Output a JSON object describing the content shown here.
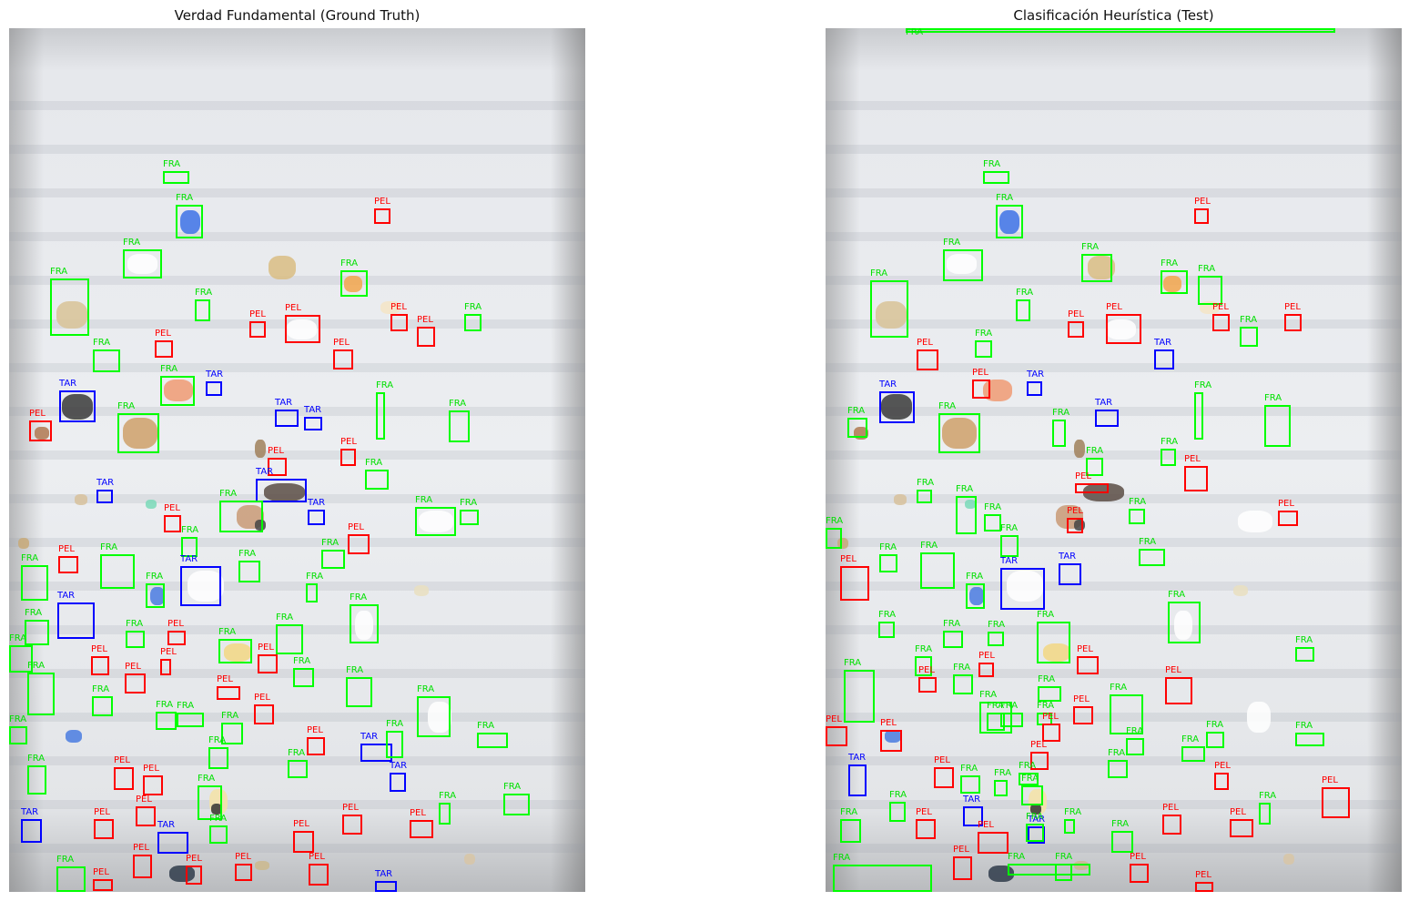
{
  "titles": {
    "left": "Verdad Fundamental (Ground Truth)",
    "right": "Clasificación Heurística (Test)"
  },
  "classes": {
    "fragment": "FRA",
    "pellet": "PEL",
    "tar": "TAR"
  },
  "colors": {
    "FRA": "#00ff00",
    "PEL": "#ff0000",
    "TAR": "#0000ff"
  },
  "panels": [
    {
      "name": "ground-truth",
      "detections": [
        {
          "c": "FRA"
        },
        {
          "c": "FRA"
        },
        {
          "c": "PEL"
        },
        {
          "c": "FRA"
        },
        {
          "c": "FRA"
        },
        {
          "c": "FRA"
        },
        {
          "c": "FRA"
        },
        {
          "c": "PEL"
        },
        {
          "c": "PEL"
        },
        {
          "c": "PEL"
        },
        {
          "c": "FRA"
        },
        {
          "c": "PEL"
        },
        {
          "c": "PEL"
        },
        {
          "c": "FRA"
        },
        {
          "c": "PEL"
        },
        {
          "c": "TAR"
        },
        {
          "c": "FRA"
        },
        {
          "c": "TAR"
        },
        {
          "c": "TAR"
        },
        {
          "c": "FRA"
        },
        {
          "c": "FRA"
        },
        {
          "c": "FRA"
        },
        {
          "c": "TAR"
        },
        {
          "c": "PEL"
        },
        {
          "c": "PEL"
        },
        {
          "c": "PEL"
        },
        {
          "c": "FRA"
        },
        {
          "c": "TAR"
        },
        {
          "c": "TAR"
        },
        {
          "c": "FRA"
        },
        {
          "c": "TAR"
        },
        {
          "c": "PEL"
        },
        {
          "c": "FRA"
        },
        {
          "c": "FRA"
        },
        {
          "c": "PEL"
        },
        {
          "c": "FRA"
        },
        {
          "c": "FRA"
        },
        {
          "c": "PEL"
        },
        {
          "c": "FRA"
        },
        {
          "c": "FRA"
        },
        {
          "c": "TAR"
        },
        {
          "c": "FRA"
        },
        {
          "c": "FRA"
        },
        {
          "c": "FRA"
        },
        {
          "c": "TAR"
        },
        {
          "c": "FRA"
        },
        {
          "c": "FRA"
        },
        {
          "c": "FRA"
        },
        {
          "c": "PEL"
        },
        {
          "c": "FRA"
        },
        {
          "c": "FRA"
        },
        {
          "c": "FRA"
        },
        {
          "c": "PEL"
        },
        {
          "c": "PEL"
        },
        {
          "c": "PEL"
        },
        {
          "c": "FRA"
        },
        {
          "c": "PEL"
        },
        {
          "c": "FRA"
        },
        {
          "c": "FRA"
        },
        {
          "c": "PEL"
        },
        {
          "c": "FRA"
        },
        {
          "c": "FRA"
        },
        {
          "c": "FRA"
        },
        {
          "c": "FRA"
        },
        {
          "c": "PEL"
        },
        {
          "c": "FRA"
        },
        {
          "c": "PEL"
        },
        {
          "c": "FRA"
        },
        {
          "c": "FRA"
        },
        {
          "c": "TAR"
        },
        {
          "c": "FRA"
        },
        {
          "c": "FRA"
        },
        {
          "c": "PEL"
        },
        {
          "c": "FRA"
        },
        {
          "c": "FRA"
        },
        {
          "c": "PEL"
        },
        {
          "c": "FRA"
        },
        {
          "c": "TAR"
        },
        {
          "c": "FRA"
        },
        {
          "c": "FRA"
        },
        {
          "c": "TAR"
        },
        {
          "c": "PEL"
        },
        {
          "c": "PEL"
        },
        {
          "c": "TAR"
        },
        {
          "c": "FRA"
        },
        {
          "c": "PEL"
        },
        {
          "c": "PEL"
        },
        {
          "c": "PEL"
        },
        {
          "c": "FRA"
        },
        {
          "c": "PEL"
        },
        {
          "c": "PEL"
        },
        {
          "c": "PEL"
        },
        {
          "c": "PEL"
        },
        {
          "c": "PEL"
        },
        {
          "c": "TAR"
        }
      ]
    },
    {
      "name": "heuristic-test",
      "detections": [
        {
          "c": "FRA"
        },
        {
          "c": "FRA"
        },
        {
          "c": "FRA"
        },
        {
          "c": "PEL"
        },
        {
          "c": "FRA"
        },
        {
          "c": "FRA"
        },
        {
          "c": "FRA"
        },
        {
          "c": "FRA"
        },
        {
          "c": "FRA"
        },
        {
          "c": "FRA"
        },
        {
          "c": "PEL"
        },
        {
          "c": "FRA"
        },
        {
          "c": "PEL"
        },
        {
          "c": "PEL"
        },
        {
          "c": "PEL"
        },
        {
          "c": "FRA"
        },
        {
          "c": "PEL"
        },
        {
          "c": "PEL"
        },
        {
          "c": "TAR"
        },
        {
          "c": "FRA"
        },
        {
          "c": "TAR"
        },
        {
          "c": "FRA"
        },
        {
          "c": "TAR"
        },
        {
          "c": "TAR"
        },
        {
          "c": "FRA"
        },
        {
          "c": "FRA"
        },
        {
          "c": "FRA"
        },
        {
          "c": "FRA"
        },
        {
          "c": "FRA"
        },
        {
          "c": "PEL"
        },
        {
          "c": "PEL"
        },
        {
          "c": "FRA"
        },
        {
          "c": "FRA"
        },
        {
          "c": "FRA"
        },
        {
          "c": "FRA"
        },
        {
          "c": "PEL"
        },
        {
          "c": "PEL"
        },
        {
          "c": "TAR"
        },
        {
          "c": "FRA"
        },
        {
          "c": "FRA"
        },
        {
          "c": "FRA"
        },
        {
          "c": "FRA"
        },
        {
          "c": "FRA"
        },
        {
          "c": "PEL"
        },
        {
          "c": "TAR"
        },
        {
          "c": "FRA"
        },
        {
          "c": "FRA"
        },
        {
          "c": "FRA"
        },
        {
          "c": "FRA"
        },
        {
          "c": "FRA"
        },
        {
          "c": "FRA"
        },
        {
          "c": "FRA"
        },
        {
          "c": "PEL"
        },
        {
          "c": "FRA"
        },
        {
          "c": "PEL"
        },
        {
          "c": "PEL"
        },
        {
          "c": "FRA"
        },
        {
          "c": "FRA"
        },
        {
          "c": "PEL"
        },
        {
          "c": "FRA"
        },
        {
          "c": "FRA"
        },
        {
          "c": "FRA"
        },
        {
          "c": "FRA"
        },
        {
          "c": "FRA"
        },
        {
          "c": "FRA"
        },
        {
          "c": "PEL"
        },
        {
          "c": "PEL"
        },
        {
          "c": "FRA"
        },
        {
          "c": "FRA"
        },
        {
          "c": "PEL"
        },
        {
          "c": "FRA"
        },
        {
          "c": "FRA"
        },
        {
          "c": "PEL"
        },
        {
          "c": "TAR"
        },
        {
          "c": "PEL"
        },
        {
          "c": "PEL"
        },
        {
          "c": "FRA"
        },
        {
          "c": "FRA"
        },
        {
          "c": "FRA"
        },
        {
          "c": "FRA"
        },
        {
          "c": "FRA"
        },
        {
          "c": "PEL"
        },
        {
          "c": "FRA"
        },
        {
          "c": "PEL"
        },
        {
          "c": "FRA"
        },
        {
          "c": "FRA"
        },
        {
          "c": "TAR"
        },
        {
          "c": "PEL"
        },
        {
          "c": "PEL"
        },
        {
          "c": "TAR"
        },
        {
          "c": "PEL"
        },
        {
          "c": "PEL"
        },
        {
          "c": "FRA"
        },
        {
          "c": "FRA"
        },
        {
          "c": "PEL"
        },
        {
          "c": "FRA"
        },
        {
          "c": "FRA"
        },
        {
          "c": "PEL"
        },
        {
          "c": "PEL"
        },
        {
          "c": "FRA"
        },
        {
          "c": "FRA"
        },
        {
          "c": "FRA"
        }
      ]
    }
  ]
}
